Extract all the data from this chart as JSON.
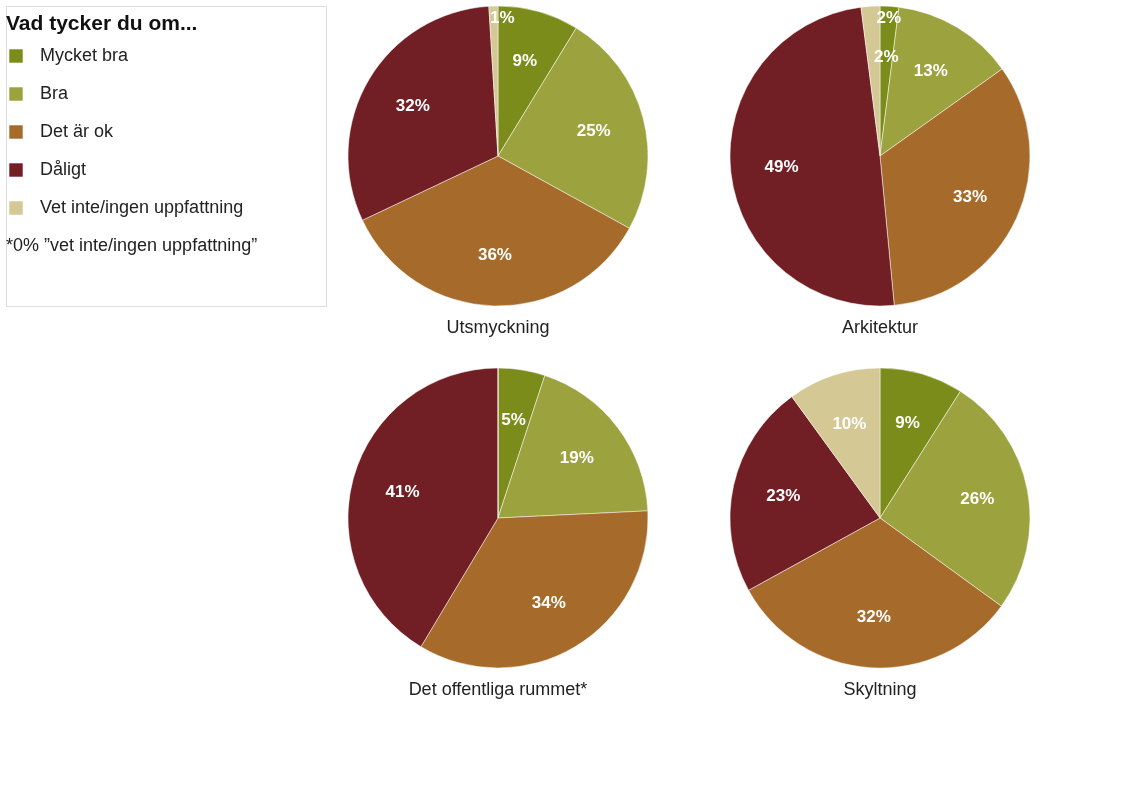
{
  "chart_data": [
    {
      "type": "pie",
      "title": "Utsmyckning",
      "legend": "left",
      "legend_title": "Vad tycker du om...",
      "annotations": [
        "*0% ”vet inte/ingen uppfattning”"
      ],
      "categories": [
        "Mycket bra",
        "Bra",
        "Det är ok",
        "Dåligt",
        "Vet inte/ingen uppfattning"
      ],
      "colors": [
        "#7b8c1a",
        "#9ca23d",
        "#a66a2a",
        "#711e25",
        "#d4c894"
      ],
      "values": [
        9,
        25,
        36,
        32,
        1
      ],
      "value_labels": [
        "9%",
        "25%",
        "36%",
        "32%",
        "1%"
      ]
    },
    {
      "type": "pie",
      "title": "Arkitektur",
      "colors": [
        "#7b8c1a",
        "#9ca23d",
        "#a66a2a",
        "#711e25",
        "#d4c894"
      ],
      "values": [
        2,
        13,
        33,
        49,
        2
      ],
      "value_labels": [
        "2%",
        "13%",
        "33%",
        "49%",
        "2%"
      ]
    },
    {
      "type": "pie",
      "title": "Det offentliga rummet*",
      "colors": [
        "#7b8c1a",
        "#9ca23d",
        "#a66a2a",
        "#711e25",
        "#d4c894"
      ],
      "values": [
        5,
        19,
        34,
        41,
        0
      ],
      "value_labels": [
        "5%",
        "19%",
        "34%",
        "41%",
        null
      ]
    },
    {
      "type": "pie",
      "title": "Skyltning",
      "colors": [
        "#7b8c1a",
        "#9ca23d",
        "#a66a2a",
        "#711e25",
        "#d4c894"
      ],
      "values": [
        9,
        26,
        32,
        23,
        10
      ],
      "value_labels": [
        "9%",
        "26%",
        "32%",
        "23%",
        "10%"
      ]
    }
  ]
}
